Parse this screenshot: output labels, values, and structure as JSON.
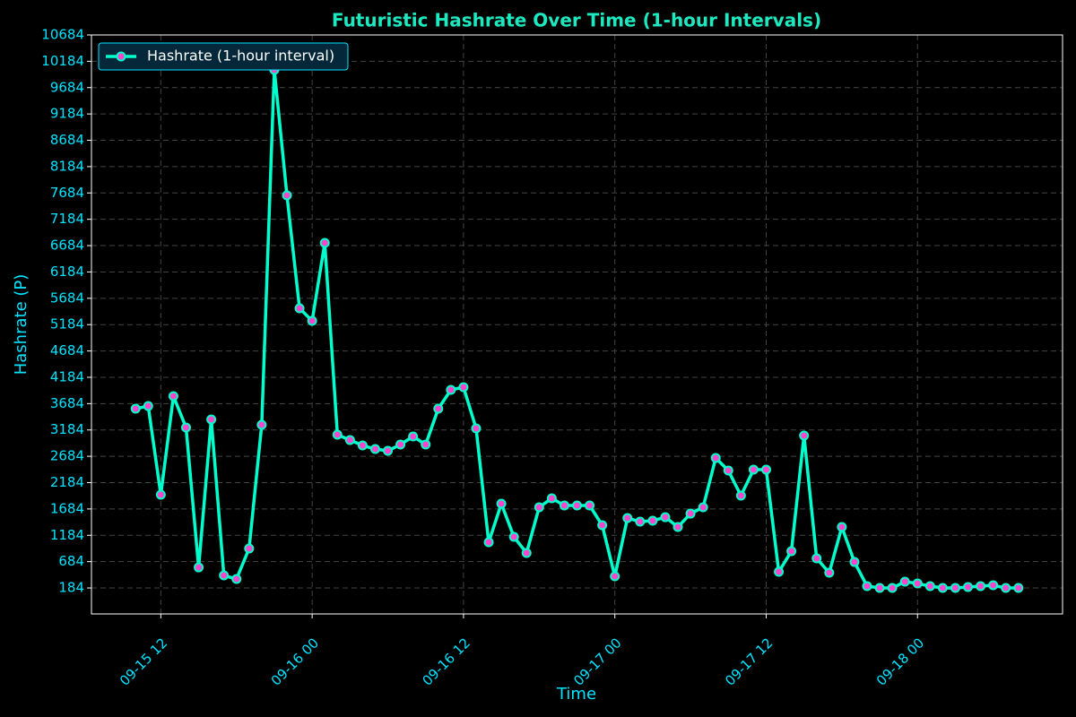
{
  "chart_data": {
    "type": "line",
    "title": "Futuristic Hashrate Over Time (1-hour Intervals)",
    "x_label": "Time",
    "y_label": "Hashrate (P)",
    "x": [
      "09-15 10",
      "09-15 11",
      "09-15 12",
      "09-15 13",
      "09-15 14",
      "09-15 15",
      "09-15 16",
      "09-15 17",
      "09-15 18",
      "09-15 19",
      "09-15 20",
      "09-15 21",
      "09-15 22",
      "09-15 23",
      "09-16 00",
      "09-16 01",
      "09-16 02",
      "09-16 03",
      "09-16 04",
      "09-16 05",
      "09-16 06",
      "09-16 07",
      "09-16 08",
      "09-16 09",
      "09-16 10",
      "09-16 11",
      "09-16 12",
      "09-16 13",
      "09-16 14",
      "09-16 15",
      "09-16 16",
      "09-16 17",
      "09-16 18",
      "09-16 19",
      "09-16 20",
      "09-16 21",
      "09-16 22",
      "09-16 23",
      "09-17 00",
      "09-17 01",
      "09-17 02",
      "09-17 03",
      "09-17 04",
      "09-17 05",
      "09-17 06",
      "09-17 07",
      "09-17 08",
      "09-17 09",
      "09-17 10",
      "09-17 11",
      "09-17 12",
      "09-17 13",
      "09-17 14",
      "09-17 15",
      "09-17 16",
      "09-17 17",
      "09-17 18",
      "09-17 19",
      "09-17 20",
      "09-17 21",
      "09-17 22",
      "09-17 23",
      "09-18 00",
      "09-18 01",
      "09-18 02",
      "09-18 03",
      "09-18 04",
      "09-18 05",
      "09-18 06",
      "09-18 07",
      "09-18 08"
    ],
    "series": [
      {
        "name": "Hashrate (1-hour interval)",
        "color": "#00ffcc",
        "marker_color": "#ff44cc",
        "values": [
          3588,
          3638,
          1954,
          3826,
          3230,
          575,
          3384,
          422,
          354,
          933,
          3281,
          10021,
          7638,
          5494,
          5256,
          6736,
          3094,
          2992,
          2890,
          2822,
          2788,
          2907,
          3060,
          2907,
          3588,
          3945,
          3996,
          3213,
          1052,
          1784,
          1154,
          848,
          1716,
          1886,
          1750,
          1750,
          1750,
          1375,
          405,
          1511,
          1443,
          1460,
          1528,
          1341,
          1596,
          1716,
          2652,
          2413,
          1937,
          2430,
          2430,
          490,
          882,
          3077,
          746,
          473,
          1341,
          677,
          218,
          184,
          184,
          303,
          269,
          218,
          184,
          184,
          201,
          218,
          235,
          184,
          184
        ]
      }
    ],
    "ylim": [
      -309,
      10684
    ],
    "yticks": [
      184,
      684,
      1184,
      1684,
      2184,
      2684,
      3184,
      3684,
      4184,
      4684,
      5184,
      5684,
      6184,
      6684,
      7184,
      7684,
      8184,
      8684,
      9184,
      9684,
      10184,
      10684
    ],
    "xticks": [
      "09-15 12",
      "09-16 00",
      "09-16 12",
      "09-17 00",
      "09-17 12",
      "09-18 00"
    ],
    "grid": true,
    "legend": "upper left"
  }
}
